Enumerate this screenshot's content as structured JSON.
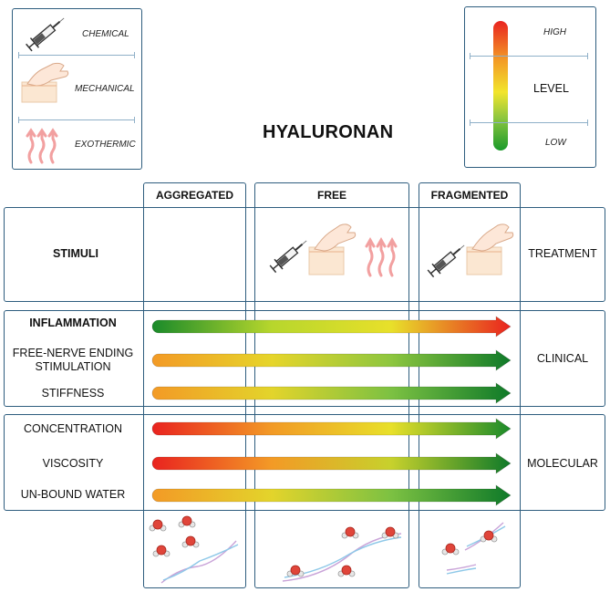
{
  "title": "HYALURONAN",
  "stimuli_legend": [
    {
      "label": "CHEMICAL",
      "icon": "syringe-icon"
    },
    {
      "label": "MECHANICAL",
      "icon": "hand-pressing-icon"
    },
    {
      "label": "EXOTHERMIC",
      "icon": "heat-waves-icon"
    }
  ],
  "level_legend": {
    "high": "HIGH",
    "label": "LEVEL",
    "low": "LOW"
  },
  "columns": [
    "AGGREGATED",
    "FREE",
    "FRAGMENTED"
  ],
  "stimuli_row": {
    "label": "STIMULI",
    "side_label": "TREATMENT",
    "free_icons": [
      "syringe-icon",
      "hand-pressing-icon",
      "heat-waves-icon"
    ],
    "fragmented_icons": [
      "syringe-icon",
      "hand-pressing-icon"
    ]
  },
  "clinical": {
    "side_label": "CLINICAL",
    "rows": [
      {
        "label": "INFLAMMATION",
        "gradient": [
          "#1a8a2a",
          "#b7d62c",
          "#e8e02a",
          "#e9231f"
        ]
      },
      {
        "label": "FREE-NERVE ENDING\nSTIMULATION",
        "gradient": [
          "#f39a26",
          "#e6d52b",
          "#8dc63f",
          "#0f7a29"
        ]
      },
      {
        "label": "STIFFNESS",
        "gradient": [
          "#f39a26",
          "#e3d42b",
          "#7cc142",
          "#0f7a29"
        ]
      }
    ]
  },
  "molecular": {
    "side_label": "MOLECULAR",
    "rows": [
      {
        "label": "CONCENTRATION",
        "gradient": [
          "#e9231f",
          "#f29a26",
          "#e8e02a",
          "#1a8a2a"
        ]
      },
      {
        "label": "VISCOSITY",
        "gradient": [
          "#e9231f",
          "#f39a26",
          "#c7d12c",
          "#0f7a29"
        ]
      },
      {
        "label": "UN-BOUND WATER",
        "gradient": [
          "#f39a26",
          "#e3d42b",
          "#7cc142",
          "#0f7a29"
        ]
      }
    ]
  },
  "colors": {
    "border": "#2e5d7e",
    "high": "#e9231f",
    "mid": "#f2e52b",
    "low": "#1a9a2a"
  }
}
